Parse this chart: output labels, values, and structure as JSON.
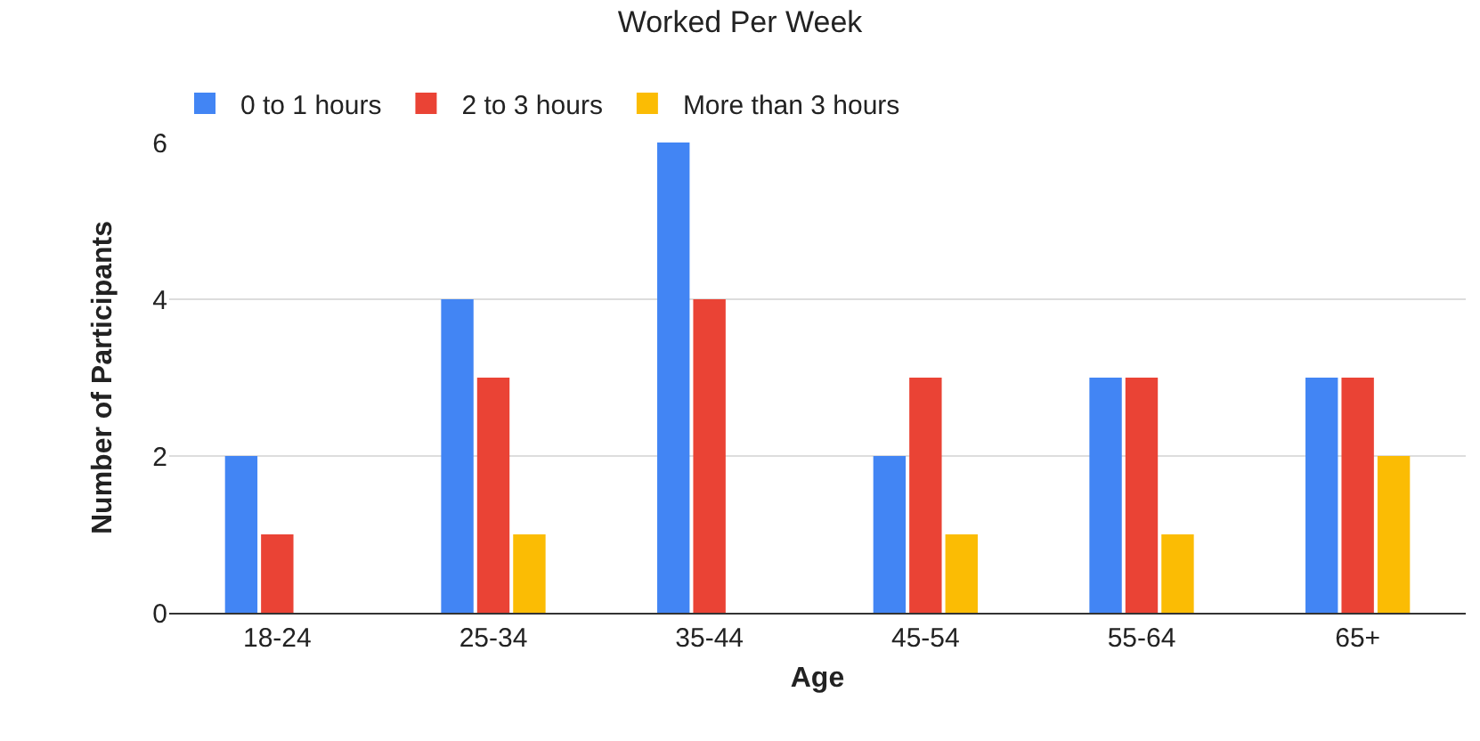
{
  "chart_data": {
    "type": "bar",
    "title": "Worked Per Week",
    "xlabel": "Age",
    "ylabel": "Number of Participants",
    "categories": [
      "18-24",
      "25-34",
      "35-44",
      "45-54",
      "55-64",
      "65+"
    ],
    "series": [
      {
        "name": "0 to 1 hours",
        "color": "#4285f4",
        "values": [
          2,
          4,
          6,
          2,
          3,
          3
        ]
      },
      {
        "name": "2 to 3 hours",
        "color": "#ea4335",
        "values": [
          1,
          3,
          4,
          3,
          3,
          3
        ]
      },
      {
        "name": "More than 3 hours",
        "color": "#fbbc04",
        "values": [
          0,
          1,
          0,
          1,
          1,
          2
        ]
      }
    ],
    "ylim": [
      0,
      6
    ],
    "yticks": [
      0,
      2,
      4,
      6
    ],
    "grid": "y",
    "legend": "top left"
  }
}
